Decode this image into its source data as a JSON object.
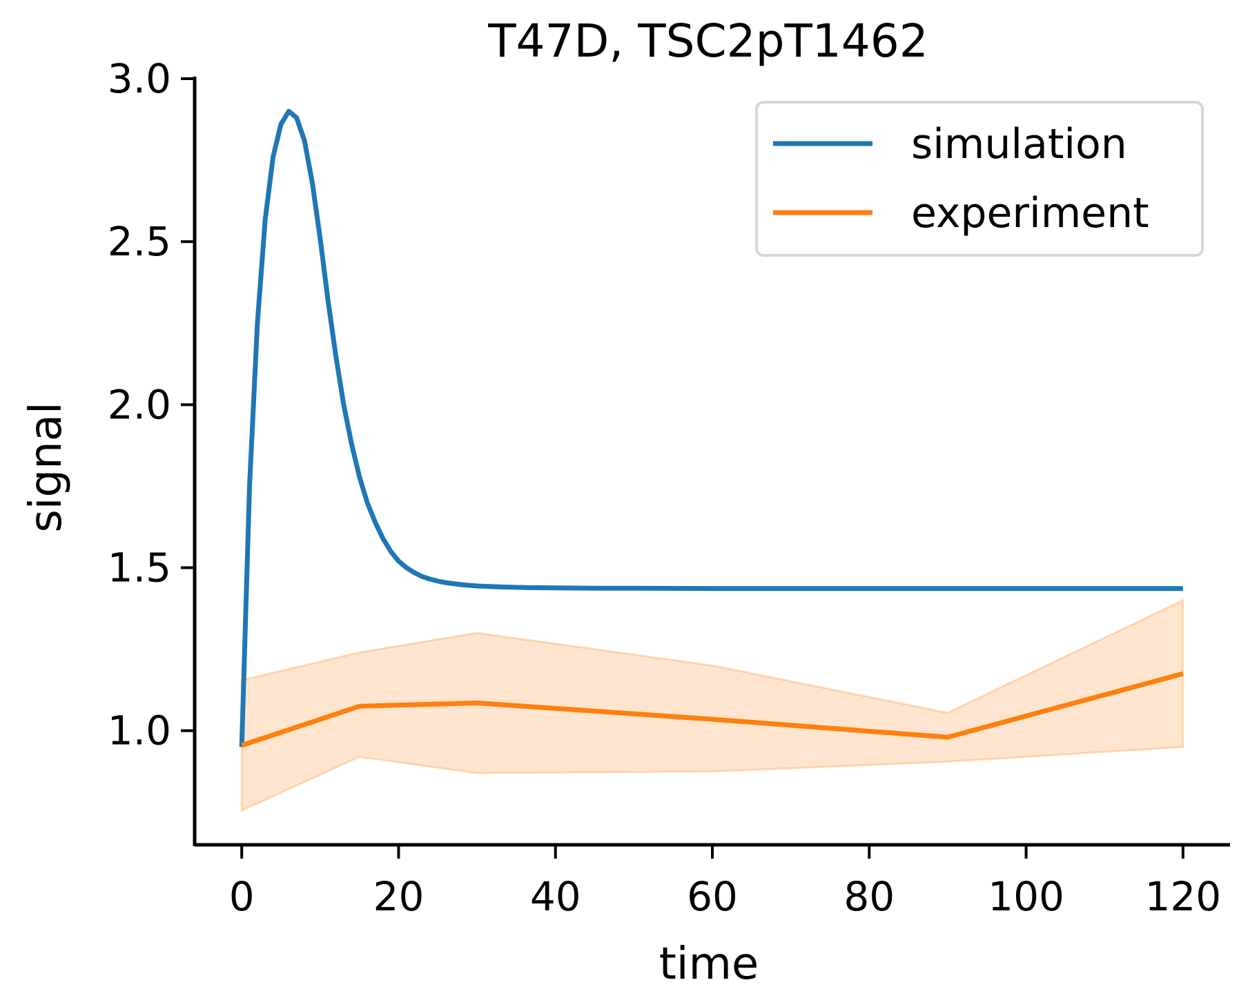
{
  "chart_data": {
    "type": "line",
    "title": "T47D, TSC2pT1462",
    "xlabel": "time",
    "ylabel": "signal",
    "xlim": [
      -6,
      126
    ],
    "ylim": [
      0.65,
      3.0
    ],
    "xticks": [
      0,
      20,
      40,
      60,
      80,
      100,
      120
    ],
    "yticks": [
      1.0,
      1.5,
      2.0,
      2.5,
      3.0
    ],
    "xtick_labels": [
      "0",
      "20",
      "40",
      "60",
      "80",
      "100",
      "120"
    ],
    "ytick_labels": [
      "1.0",
      "1.5",
      "2.0",
      "2.5",
      "3.0"
    ],
    "grid": false,
    "legend_position": "top-right",
    "series": [
      {
        "name": "simulation",
        "color": "#1f77b4",
        "x": [
          0,
          1,
          2,
          3,
          4,
          5,
          6,
          7,
          8,
          9,
          10,
          11,
          12,
          13,
          14,
          15,
          16,
          17,
          18,
          19,
          20,
          21,
          22,
          23,
          24,
          25,
          26,
          28,
          30,
          33,
          36,
          40,
          45,
          50,
          60,
          70,
          80,
          90,
          100,
          110,
          120
        ],
        "y": [
          0.95,
          1.75,
          2.25,
          2.57,
          2.76,
          2.86,
          2.9,
          2.88,
          2.81,
          2.68,
          2.51,
          2.32,
          2.15,
          2.0,
          1.88,
          1.78,
          1.7,
          1.64,
          1.59,
          1.55,
          1.52,
          1.5,
          1.485,
          1.473,
          1.465,
          1.459,
          1.454,
          1.448,
          1.444,
          1.441,
          1.439,
          1.438,
          1.437,
          1.437,
          1.436,
          1.436,
          1.436,
          1.436,
          1.436,
          1.436,
          1.436
        ]
      },
      {
        "name": "experiment",
        "color": "#ff7f0e",
        "x": [
          0,
          15,
          30,
          60,
          90,
          120
        ],
        "y": [
          0.955,
          1.075,
          1.085,
          1.035,
          0.98,
          1.175
        ],
        "lower": [
          0.755,
          0.92,
          0.87,
          0.875,
          0.905,
          0.95
        ],
        "upper": [
          1.155,
          1.24,
          1.3,
          1.2,
          1.055,
          1.4
        ]
      }
    ]
  }
}
